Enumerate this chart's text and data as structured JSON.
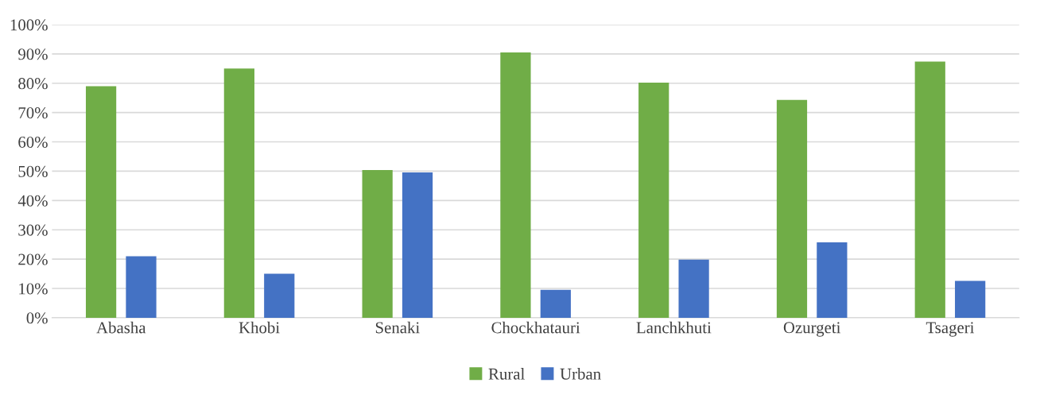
{
  "chart_data": {
    "type": "bar",
    "categories": [
      "Abasha",
      "Khobi",
      "Senaki",
      "Chockhatauri",
      "Lanchkhuti",
      "Ozurgeti",
      "Tsageri"
    ],
    "series": [
      {
        "name": "Rural",
        "color": "#70ad47",
        "values": [
          79,
          85,
          50.4,
          90.5,
          80.2,
          74.3,
          87.4
        ]
      },
      {
        "name": "Urban",
        "color": "#4472c4",
        "values": [
          21,
          15,
          49.6,
          9.5,
          19.8,
          25.7,
          12.6
        ]
      }
    ],
    "ylim": [
      0,
      100
    ],
    "yticks": [
      {
        "value": 0,
        "label": "0%"
      },
      {
        "value": 10,
        "label": "10%"
      },
      {
        "value": 20,
        "label": "20%"
      },
      {
        "value": 30,
        "label": "30%"
      },
      {
        "value": 40,
        "label": "40%"
      },
      {
        "value": 50,
        "label": "50%"
      },
      {
        "value": 60,
        "label": "60%"
      },
      {
        "value": 70,
        "label": "70%"
      },
      {
        "value": 80,
        "label": "80%"
      },
      {
        "value": 90,
        "label": "90%"
      },
      {
        "value": 100,
        "label": "100%"
      }
    ],
    "grid": "y",
    "legend": "bottom"
  }
}
